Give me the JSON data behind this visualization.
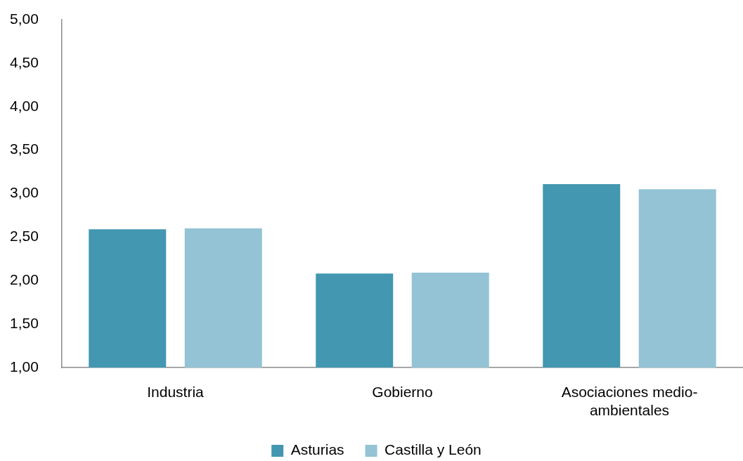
{
  "chart_data": {
    "type": "bar",
    "categories": [
      "Industria",
      "Gobierno",
      "Asociaciones medio-ambientales"
    ],
    "series": [
      {
        "name": "Asturias",
        "color": "#4397b0",
        "values": [
          2.59,
          2.08,
          3.11
        ]
      },
      {
        "name": "Castilla y León",
        "color": "#93c3d5",
        "values": [
          2.6,
          2.09,
          3.05
        ]
      }
    ],
    "ylim": [
      1,
      5
    ],
    "yticks": [
      {
        "value": 1,
        "label": "1,00"
      },
      {
        "value": 1.5,
        "label": "1,50"
      },
      {
        "value": 2,
        "label": "2,00"
      },
      {
        "value": 2.5,
        "label": "2,50"
      },
      {
        "value": 3,
        "label": "3,00"
      },
      {
        "value": 3.5,
        "label": "3,50"
      },
      {
        "value": 4,
        "label": "4,00"
      },
      {
        "value": 4.5,
        "label": "4,50"
      },
      {
        "value": 5,
        "label": "5,00"
      }
    ],
    "grid": false,
    "legend": "bottom"
  }
}
